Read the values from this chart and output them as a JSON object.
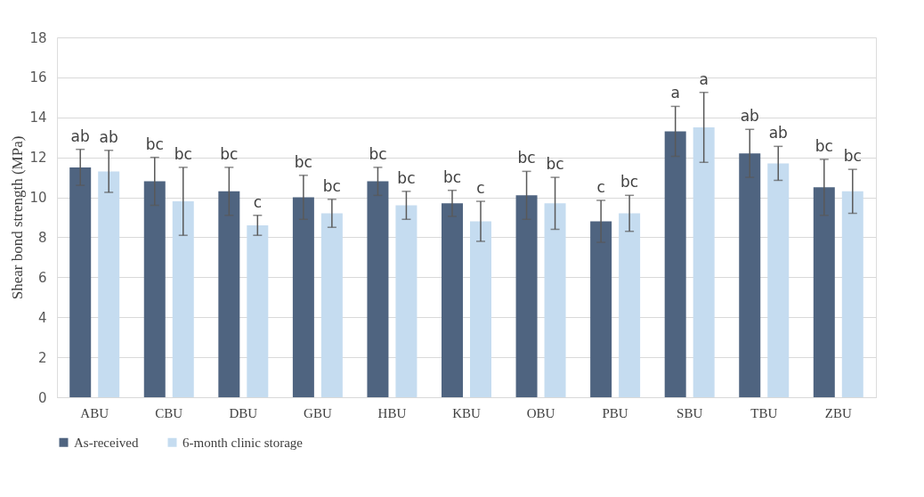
{
  "chart_data": {
    "type": "bar",
    "ylabel": "Shear bond strength (MPa)",
    "categories": [
      "ABU",
      "CBU",
      "DBU",
      "GBU",
      "HBU",
      "KBU",
      "OBU",
      "PBU",
      "SBU",
      "TBU",
      "ZBU"
    ],
    "series": [
      {
        "name": "As-received",
        "color": "#4f6480",
        "values": [
          11.5,
          10.8,
          10.3,
          10.0,
          10.8,
          9.7,
          10.1,
          8.8,
          13.3,
          12.2,
          10.5
        ],
        "errors": [
          0.9,
          1.2,
          1.2,
          1.1,
          0.7,
          0.65,
          1.2,
          1.05,
          1.25,
          1.2,
          1.4
        ],
        "value_labels": [
          "ab",
          "bc",
          "bc",
          "bc",
          "bc",
          "bc",
          "bc",
          "c",
          "a",
          "ab",
          "bc"
        ]
      },
      {
        "name": "6-month clinic storage",
        "color": "#c5dcf0",
        "values": [
          11.3,
          9.8,
          8.6,
          9.2,
          9.6,
          8.8,
          9.7,
          9.2,
          13.5,
          11.7,
          10.3
        ],
        "errors": [
          1.05,
          1.7,
          0.5,
          0.7,
          0.7,
          1.0,
          1.3,
          0.9,
          1.75,
          0.85,
          1.1
        ],
        "value_labels": [
          "ab",
          "bc",
          "c",
          "bc",
          "bc",
          "c",
          "bc",
          "bc",
          "a",
          "ab",
          "bc"
        ]
      }
    ],
    "ylim": [
      0,
      18
    ],
    "yticks": [
      0,
      2,
      4,
      6,
      8,
      10,
      12,
      14,
      16,
      18
    ],
    "grid": "y",
    "legend": "bottom"
  }
}
